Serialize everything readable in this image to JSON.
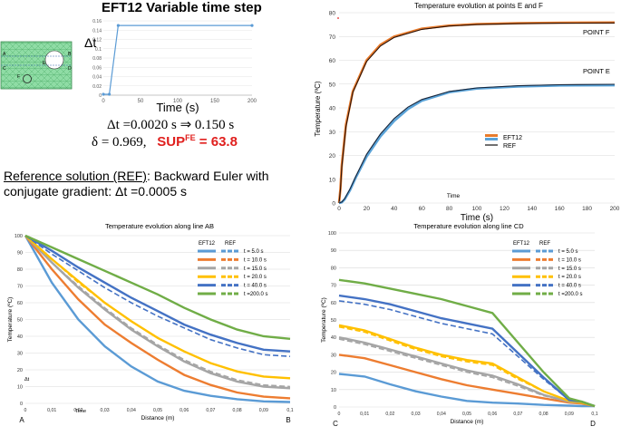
{
  "header": {
    "title": "EFT12   Variable time step",
    "dt_line": "Δt =0.0020 s  ⇒ 0.150 s",
    "delta_line": "δ = 0.969,",
    "sup_label": "SUP",
    "sup_sup": "FE",
    "sup_value": " = 63.8",
    "ref_label": "Reference solution (REF)",
    "ref_line1_rest": ": Backward Euler with",
    "ref_line2": "conjugate gradient: Δt =0.0005 s"
  },
  "mesh": {
    "labels": [
      "A",
      "B",
      "C",
      "D",
      "E",
      "F"
    ]
  },
  "colors": {
    "c5": "#5b9bd5",
    "c10": "#ed7d31",
    "c15": "#a5a5a5",
    "c20": "#ffc000",
    "c40": "#4472c4",
    "c200": "#70ad47",
    "ptF_eft": "#e87b2c",
    "ptF_ref": "#2b1208",
    "ptE_eft": "#5aa3d8",
    "ptE_ref": "#17253a",
    "red": "#e0201e"
  },
  "chart_data": [
    {
      "id": "dt",
      "type": "line",
      "title": "",
      "ylabel": "Δt",
      "xlabel": "Time (s)",
      "xlim": [
        0,
        200
      ],
      "ylim": [
        0,
        0.16
      ],
      "xticks": [
        0,
        50,
        100,
        150,
        200
      ],
      "yticks": [
        0,
        0.02,
        0.04,
        0.06,
        0.08,
        0.1,
        0.12,
        0.14,
        0.16
      ],
      "series": [
        {
          "x": [
            0,
            8,
            20,
            200
          ],
          "y": [
            0.002,
            0.002,
            0.15,
            0.15
          ]
        }
      ]
    },
    {
      "id": "points",
      "type": "line",
      "title": "Temperature evolution at points E and F",
      "xlabel": "Time  (s)",
      "ylabel": "Temperature (ºC)",
      "inner_label": "Time",
      "xlim": [
        0,
        200
      ],
      "ylim": [
        0,
        80
      ],
      "xticks": [
        0,
        20,
        40,
        60,
        80,
        100,
        120,
        140,
        160,
        180,
        200
      ],
      "yticks": [
        0,
        10,
        20,
        30,
        40,
        50,
        60,
        70,
        80
      ],
      "legend": [
        "EFT12",
        "REF"
      ],
      "annotations": [
        "POINT F",
        "POINT E"
      ],
      "series": [
        {
          "group": "POINT F",
          "x": [
            0,
            1,
            2,
            5,
            10,
            20,
            30,
            40,
            60,
            80,
            100,
            130,
            160,
            200
          ],
          "eft": [
            0,
            6,
            16,
            33,
            47,
            60,
            66.5,
            70,
            73.3,
            74.6,
            75.2,
            75.6,
            75.8,
            75.9
          ],
          "ref": [
            0,
            5.5,
            15,
            32,
            46.5,
            59.5,
            66,
            69.6,
            73,
            74.4,
            75,
            75.4,
            75.6,
            75.7
          ]
        },
        {
          "group": "POINT E",
          "x": [
            0,
            2,
            4,
            8,
            12,
            20,
            30,
            40,
            50,
            60,
            80,
            100,
            130,
            160,
            200
          ],
          "eft": [
            0,
            0.3,
            1.5,
            5.5,
            10.5,
            19.5,
            28,
            34.5,
            39.5,
            43,
            46.6,
            48.1,
            49,
            49.4,
            49.5
          ],
          "ref": [
            0,
            0.4,
            1.8,
            6,
            11,
            20.5,
            29,
            35.5,
            40.3,
            43.5,
            46.9,
            48.4,
            49.3,
            49.7,
            49.9
          ]
        }
      ]
    },
    {
      "id": "ab",
      "type": "line",
      "title": "Temperature evolution along line AB",
      "xlabel": "Distance (m)",
      "ylabel": "Temperature (ºC)",
      "inner_labels": [
        "Δt",
        "Time"
      ],
      "end_labels": [
        "A",
        "B"
      ],
      "xlim": [
        0,
        0.1
      ],
      "ylim": [
        0,
        100
      ],
      "xticks": [
        "0",
        "0,01",
        "0,02",
        "0,03",
        "0,04",
        "0,05",
        "0,06",
        "0,07",
        "0,08",
        "0,09",
        "0,1"
      ],
      "yticks": [
        0,
        10,
        20,
        30,
        40,
        50,
        60,
        70,
        80,
        90,
        100
      ],
      "legend_headers": [
        "EFT12",
        "REF"
      ],
      "legend_labels": [
        "t =    5.0 s",
        "t =  10.0 s",
        "t =  15.0 s",
        "t =  20.0 s",
        "t =  40.0 s",
        "t =200.0 s"
      ],
      "x": [
        0,
        0.01,
        0.02,
        0.03,
        0.04,
        0.05,
        0.06,
        0.07,
        0.08,
        0.09,
        0.1
      ],
      "series": [
        {
          "name": "t =    5.0 s",
          "colorKey": "c5",
          "eft": [
            100,
            72,
            50,
            34,
            22,
            13,
            7.5,
            4.5,
            2.5,
            1.2,
            0.8
          ],
          "ref": [
            100,
            72,
            50,
            34,
            22,
            13,
            7.5,
            4.5,
            2.5,
            1.2,
            0.8
          ]
        },
        {
          "name": "t =  10.0 s",
          "colorKey": "c10",
          "eft": [
            100,
            80,
            62,
            47,
            36,
            26,
            17,
            11,
            6.5,
            4,
            3
          ],
          "ref": [
            100,
            80,
            62,
            47,
            36,
            26,
            17,
            11,
            6.5,
            4,
            3
          ]
        },
        {
          "name": "t =  15.0 s",
          "colorKey": "c15",
          "eft": [
            100,
            84,
            69,
            56,
            44,
            34,
            25,
            18,
            13,
            10,
            9
          ],
          "ref": [
            100,
            84,
            70,
            57,
            45,
            35,
            26,
            19,
            14,
            11,
            10
          ]
        },
        {
          "name": "t =  20.0 s",
          "colorKey": "c20",
          "eft": [
            100,
            86,
            73,
            60,
            49,
            39,
            31,
            24,
            19,
            16,
            15
          ],
          "ref": [
            100,
            86,
            72,
            60,
            49,
            39,
            31,
            24,
            19,
            16,
            15
          ]
        },
        {
          "name": "t =  40.0 s",
          "colorKey": "c40",
          "eft": [
            100,
            91,
            81,
            72,
            63,
            55,
            47,
            41,
            36,
            32,
            31
          ],
          "ref": [
            100,
            89,
            79,
            69,
            60,
            52,
            45,
            38,
            33,
            29,
            28
          ]
        },
        {
          "name": "t =200.0 s",
          "colorKey": "c200",
          "eft": [
            100,
            93,
            86,
            79,
            72,
            65,
            57,
            50,
            44,
            40,
            38.5
          ],
          "ref": [
            100,
            93,
            86,
            79,
            72,
            65,
            57,
            50,
            44,
            40,
            38.5
          ]
        }
      ]
    },
    {
      "id": "cd",
      "type": "line",
      "title": "Temperature evolution along line CD",
      "xlabel": "Distance (m)",
      "ylabel": "Temperature (ºC)",
      "end_labels": [
        "C",
        "D"
      ],
      "xlim": [
        0,
        0.1
      ],
      "ylim": [
        0,
        100
      ],
      "xticks": [
        "0",
        "0,01",
        "0,02",
        "0,03",
        "0,04",
        "0,05",
        "0,06",
        "0,07",
        "0,08",
        "0,09",
        "0,1"
      ],
      "yticks": [
        0,
        10,
        20,
        30,
        40,
        50,
        60,
        70,
        80,
        90,
        100
      ],
      "legend_headers": [
        "EFT12",
        "REF"
      ],
      "legend_labels": [
        "t =    5.0 s",
        "t =  10.0 s",
        "t =  15.0 s",
        "t =  20.0 s",
        "t =  40.0 s",
        "t =200.0 s"
      ],
      "x": [
        0,
        0.01,
        0.02,
        0.03,
        0.04,
        0.05,
        0.06,
        0.07,
        0.08,
        0.09,
        0.095,
        0.1
      ],
      "series": [
        {
          "name": "t =    5.0 s",
          "colorKey": "c5",
          "eft": [
            19,
            17.5,
            13,
            9,
            6,
            3.5,
            2.5,
            2,
            1.2,
            0.8,
            0.5,
            0.5
          ],
          "ref": [
            19,
            17.5,
            13,
            9,
            6,
            3.5,
            2.5,
            2,
            1.2,
            0.8,
            0.5,
            0.5
          ]
        },
        {
          "name": "t =  10.0 s",
          "colorKey": "c10",
          "eft": [
            30,
            28,
            24,
            20,
            16,
            12.5,
            10,
            7.5,
            5,
            2.5,
            2,
            0.5
          ],
          "ref": [
            30,
            28,
            24,
            20,
            16,
            12.5,
            10,
            7.5,
            5,
            2.5,
            2,
            0.5
          ]
        },
        {
          "name": "t =  15.0 s",
          "colorKey": "c15",
          "eft": [
            40,
            37,
            33,
            29,
            25,
            21,
            18,
            13,
            7,
            3,
            2.5,
            0.5
          ],
          "ref": [
            39,
            36,
            32,
            28,
            24,
            20,
            17,
            12,
            6.5,
            3,
            2.5,
            0.5
          ]
        },
        {
          "name": "t =  20.0 s",
          "colorKey": "c20",
          "eft": [
            47,
            44,
            39,
            34,
            30,
            27,
            25,
            17,
            9,
            3.5,
            2.5,
            0.5
          ],
          "ref": [
            46,
            43,
            38,
            33,
            29,
            26,
            24,
            16,
            9,
            3.5,
            2.5,
            0.5
          ]
        },
        {
          "name": "t =  40.0 s",
          "colorKey": "c40",
          "eft": [
            64,
            62,
            59,
            55,
            51,
            48,
            45,
            31,
            17,
            4,
            3,
            0.5
          ],
          "ref": [
            61,
            59,
            56,
            52,
            48,
            45,
            42,
            29,
            16,
            4,
            3,
            0.5
          ]
        },
        {
          "name": "t =200.0 s",
          "colorKey": "c200",
          "eft": [
            73,
            71,
            68,
            65,
            62,
            58,
            54,
            37,
            20,
            5,
            3,
            0.5
          ],
          "ref": [
            73,
            71,
            68,
            65,
            62,
            58,
            54,
            37,
            20,
            5,
            3,
            0.5
          ]
        }
      ]
    }
  ]
}
